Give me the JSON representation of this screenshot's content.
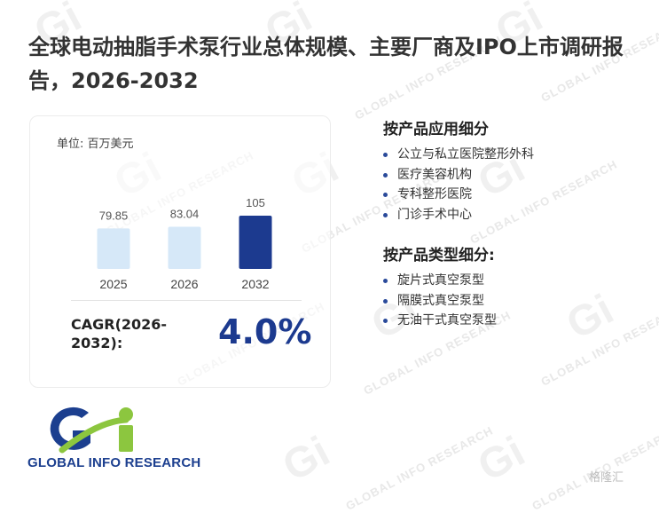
{
  "report": {
    "title": "全球电动抽脂手术泵行业总体规模、主要厂商及IPO上市调研报告，2026-2032"
  },
  "card": {
    "unit": "单位: 百万美元",
    "cagr_label": "CAGR(2026-2032):",
    "cagr_value": "4.0%"
  },
  "chart_data": {
    "type": "bar",
    "categories": [
      "2025",
      "2026",
      "2032"
    ],
    "values": [
      79.85,
      83.04,
      105
    ],
    "value_labels": [
      "79.85",
      "83.04",
      "105"
    ],
    "title": "",
    "xlabel": "",
    "ylabel": "",
    "unit": "百万美元",
    "bar_colors": [
      "#d6e8f8",
      "#d6e8f8",
      "#1c3a8f"
    ],
    "grid": false
  },
  "applications": {
    "title": "按产品应用细分",
    "items": [
      "公立与私立医院整形外科",
      "医疗美容机构",
      "专科整形医院",
      "门诊手术中心"
    ]
  },
  "types": {
    "title": "按产品类型细分:",
    "items": [
      "旋片式真空泵型",
      "隔膜式真空泵型",
      "无油干式真空泵型"
    ]
  },
  "brand": {
    "logo_text": "GLOBAL INFO RESEARCH",
    "watermark_text": "GLOBAL INFO RESEARCH",
    "source_badge": "格隆汇",
    "accent_color": "#1c3a8f",
    "logo_green": "#8cc63f"
  }
}
